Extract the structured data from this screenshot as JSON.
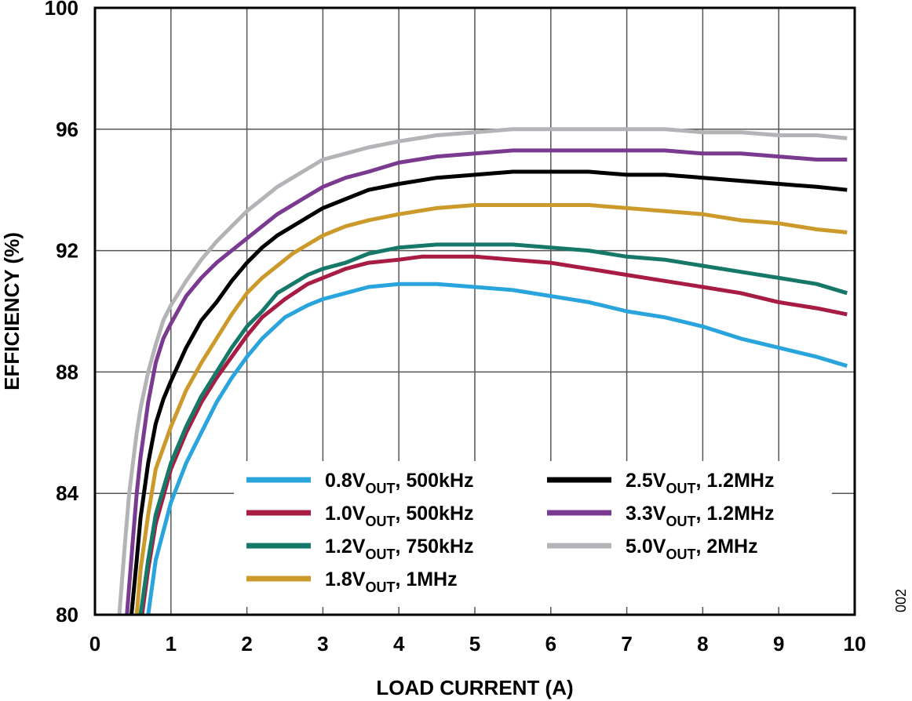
{
  "figure_id": "002",
  "chart_data": {
    "type": "line",
    "title": "",
    "xlabel": "LOAD CURRENT (A)",
    "ylabel": "EFFICIENCY (%)",
    "xlim": [
      0,
      10
    ],
    "ylim": [
      80,
      100
    ],
    "xticks": [
      0,
      1,
      2,
      3,
      4,
      5,
      6,
      7,
      8,
      9,
      10
    ],
    "yticks": [
      80,
      84,
      88,
      92,
      96,
      100
    ],
    "grid": true,
    "legend_position": "bottom-center",
    "series": [
      {
        "name": "0.8V_OUT, 500kHz",
        "label_main": "0.8V",
        "label_sub": "OUT",
        "label_tail": ", 500kHz",
        "color": "#2aa4dc",
        "x": [
          0.7,
          0.8,
          1.0,
          1.2,
          1.4,
          1.6,
          1.8,
          2.0,
          2.2,
          2.5,
          2.8,
          3.0,
          3.3,
          3.6,
          4.0,
          4.5,
          5.0,
          5.5,
          6.0,
          6.5,
          7.0,
          7.5,
          8.0,
          8.5,
          9.0,
          9.5,
          9.9
        ],
        "y": [
          80.0,
          81.8,
          83.7,
          85.0,
          86.0,
          87.0,
          87.8,
          88.5,
          89.1,
          89.8,
          90.2,
          90.4,
          90.6,
          90.8,
          90.9,
          90.9,
          90.8,
          90.7,
          90.5,
          90.3,
          90.0,
          89.8,
          89.5,
          89.1,
          88.8,
          88.5,
          88.2
        ]
      },
      {
        "name": "1.0V_OUT, 500kHz",
        "label_main": "1.0V",
        "label_sub": "OUT",
        "label_tail": ", 500kHz",
        "color": "#a81c44",
        "x": [
          0.62,
          0.7,
          0.8,
          1.0,
          1.2,
          1.4,
          1.6,
          1.8,
          2.0,
          2.2,
          2.5,
          2.8,
          3.0,
          3.3,
          3.6,
          4.0,
          4.3,
          4.5,
          5.0,
          5.5,
          6.0,
          6.5,
          7.0,
          7.5,
          8.0,
          8.5,
          9.0,
          9.5,
          9.9
        ],
        "y": [
          80.0,
          81.5,
          83.0,
          84.8,
          86.0,
          87.0,
          87.8,
          88.5,
          89.2,
          89.8,
          90.4,
          90.9,
          91.1,
          91.4,
          91.6,
          91.7,
          91.8,
          91.8,
          91.8,
          91.7,
          91.6,
          91.4,
          91.2,
          91.0,
          90.8,
          90.6,
          90.3,
          90.1,
          89.9
        ]
      },
      {
        "name": "1.2V_OUT, 750kHz",
        "label_main": "1.2V",
        "label_sub": "OUT",
        "label_tail": ", 750kHz",
        "color": "#167868",
        "x": [
          0.6,
          0.7,
          0.8,
          1.0,
          1.2,
          1.4,
          1.6,
          1.8,
          2.0,
          2.2,
          2.4,
          2.6,
          2.8,
          3.0,
          3.3,
          3.6,
          4.0,
          4.5,
          5.0,
          5.5,
          6.0,
          6.5,
          7.0,
          7.5,
          8.0,
          8.5,
          9.0,
          9.5,
          9.9
        ],
        "y": [
          80.0,
          81.8,
          83.3,
          85.0,
          86.2,
          87.2,
          88.0,
          88.8,
          89.5,
          90.0,
          90.6,
          90.9,
          91.2,
          91.4,
          91.6,
          91.9,
          92.1,
          92.2,
          92.2,
          92.2,
          92.1,
          92.0,
          91.8,
          91.7,
          91.5,
          91.3,
          91.1,
          90.9,
          90.6
        ]
      },
      {
        "name": "1.8V_OUT, 1MHz",
        "label_main": "1.8V",
        "label_sub": "OUT",
        "label_tail": ", 1MHz",
        "color": "#cc9a2a",
        "x": [
          0.55,
          0.6,
          0.7,
          0.8,
          1.0,
          1.2,
          1.4,
          1.6,
          1.8,
          2.0,
          2.2,
          2.4,
          2.6,
          2.8,
          3.0,
          3.3,
          3.6,
          4.0,
          4.5,
          5.0,
          5.5,
          6.0,
          6.5,
          7.0,
          7.5,
          8.0,
          8.5,
          9.0,
          9.5,
          9.9
        ],
        "y": [
          80.0,
          81.5,
          83.3,
          84.8,
          86.2,
          87.4,
          88.3,
          89.1,
          89.9,
          90.6,
          91.1,
          91.5,
          91.9,
          92.2,
          92.5,
          92.8,
          93.0,
          93.2,
          93.4,
          93.5,
          93.5,
          93.5,
          93.5,
          93.4,
          93.3,
          93.2,
          93.0,
          92.9,
          92.7,
          92.6
        ]
      },
      {
        "name": "2.5V_OUT, 1.2MHz",
        "label_main": "2.5V",
        "label_sub": "OUT",
        "label_tail": ", 1.2MHz",
        "color": "#000000",
        "x": [
          0.48,
          0.55,
          0.6,
          0.7,
          0.8,
          0.9,
          1.0,
          1.2,
          1.4,
          1.6,
          1.8,
          2.0,
          2.2,
          2.4,
          2.6,
          2.8,
          3.0,
          3.3,
          3.6,
          4.0,
          4.5,
          5.0,
          5.5,
          6.0,
          6.5,
          7.0,
          7.5,
          8.0,
          8.5,
          9.0,
          9.5,
          9.9
        ],
        "y": [
          80.0,
          81.8,
          83.2,
          85.0,
          86.3,
          87.1,
          87.7,
          88.8,
          89.7,
          90.3,
          91.0,
          91.6,
          92.1,
          92.5,
          92.8,
          93.1,
          93.4,
          93.7,
          94.0,
          94.2,
          94.4,
          94.5,
          94.6,
          94.6,
          94.6,
          94.5,
          94.5,
          94.4,
          94.3,
          94.2,
          94.1,
          94.0
        ]
      },
      {
        "name": "3.3V_OUT, 1.2MHz",
        "label_main": "3.3V",
        "label_sub": "OUT",
        "label_tail": ", 1.2MHz",
        "color": "#7a3a90",
        "x": [
          0.42,
          0.5,
          0.55,
          0.6,
          0.7,
          0.8,
          0.9,
          1.0,
          1.2,
          1.4,
          1.6,
          1.8,
          2.0,
          2.2,
          2.4,
          2.6,
          2.8,
          3.0,
          3.3,
          3.6,
          4.0,
          4.5,
          5.0,
          5.5,
          6.0,
          6.5,
          7.0,
          7.5,
          8.0,
          8.5,
          9.0,
          9.5,
          9.9
        ],
        "y": [
          80.0,
          82.5,
          84.0,
          85.2,
          87.0,
          88.3,
          89.1,
          89.6,
          90.5,
          91.1,
          91.6,
          92.0,
          92.4,
          92.8,
          93.2,
          93.5,
          93.8,
          94.1,
          94.4,
          94.6,
          94.9,
          95.1,
          95.2,
          95.3,
          95.3,
          95.3,
          95.3,
          95.3,
          95.2,
          95.2,
          95.1,
          95.0,
          95.0
        ]
      },
      {
        "name": "5.0V_OUT, 2MHz",
        "label_main": "5.0V",
        "label_sub": "OUT",
        "label_tail": ", 2MHz",
        "color": "#b4b4b8",
        "x": [
          0.32,
          0.4,
          0.45,
          0.5,
          0.55,
          0.6,
          0.7,
          0.8,
          0.9,
          1.0,
          1.2,
          1.4,
          1.6,
          1.8,
          2.0,
          2.2,
          2.4,
          2.6,
          2.8,
          3.0,
          3.3,
          3.6,
          4.0,
          4.5,
          5.0,
          5.5,
          6.0,
          6.5,
          7.0,
          7.5,
          8.0,
          8.5,
          9.0,
          9.5,
          9.9
        ],
        "y": [
          80.0,
          82.5,
          84.0,
          85.0,
          86.0,
          86.8,
          88.0,
          88.9,
          89.7,
          90.2,
          91.0,
          91.7,
          92.3,
          92.8,
          93.3,
          93.7,
          94.1,
          94.4,
          94.7,
          95.0,
          95.2,
          95.4,
          95.6,
          95.8,
          95.9,
          96.0,
          96.0,
          96.0,
          96.0,
          96.0,
          95.9,
          95.9,
          95.8,
          95.8,
          95.7
        ]
      }
    ]
  }
}
